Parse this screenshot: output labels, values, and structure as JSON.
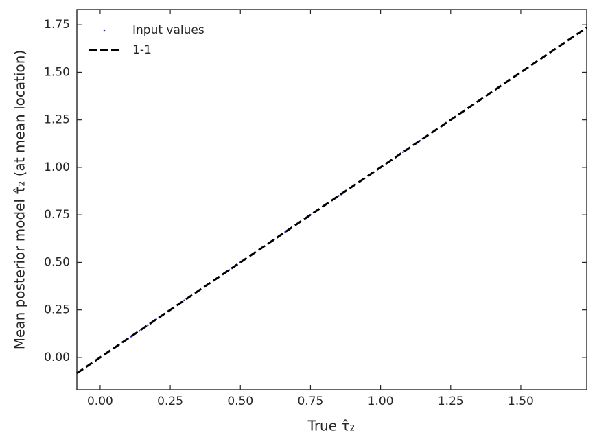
{
  "chart_data": {
    "type": "scatter",
    "xlabel": "True τ̂₂",
    "ylabel": "Mean posterior model τ̂₂ (at mean location)",
    "xlim": [
      -0.083,
      1.735
    ],
    "ylim": [
      -0.17,
      1.83
    ],
    "xticks": [
      {
        "value": 0,
        "label": "0.00"
      },
      {
        "value": 0.25,
        "label": "0.25"
      },
      {
        "value": 0.5,
        "label": "0.50"
      },
      {
        "value": 0.75,
        "label": "0.75"
      },
      {
        "value": 1,
        "label": "1.00"
      },
      {
        "value": 1.25,
        "label": "1.25"
      },
      {
        "value": 1.5,
        "label": "1.50"
      }
    ],
    "yticks": [
      {
        "value": 0,
        "label": "0.00"
      },
      {
        "value": 0.25,
        "label": "0.25"
      },
      {
        "value": 0.5,
        "label": "0.50"
      },
      {
        "value": 0.75,
        "label": "0.75"
      },
      {
        "value": 1,
        "label": "1.00"
      },
      {
        "value": 1.25,
        "label": "1.25"
      },
      {
        "value": 1.5,
        "label": "1.50"
      },
      {
        "value": 1.75,
        "label": "1.75"
      }
    ],
    "legend": "upper left",
    "series": [
      {
        "name": "Input values",
        "color": "#1f1fff",
        "mode": "markers",
        "x": [
          0.02,
          0.05,
          0.08,
          0.11,
          0.14,
          0.17,
          0.2,
          0.23,
          0.26,
          0.3,
          0.34,
          0.38,
          0.42,
          0.46,
          0.5,
          0.54,
          0.58,
          0.62,
          0.66,
          0.7,
          0.75,
          0.8,
          0.85,
          0.9,
          0.96,
          1.02,
          1.08,
          1.14,
          1.2,
          1.26,
          1.32,
          1.38
        ],
        "values": [
          0.02,
          0.05,
          0.08,
          0.11,
          0.14,
          0.17,
          0.2,
          0.23,
          0.26,
          0.3,
          0.34,
          0.38,
          0.42,
          0.46,
          0.5,
          0.54,
          0.58,
          0.62,
          0.66,
          0.7,
          0.75,
          0.8,
          0.85,
          0.9,
          0.96,
          1.02,
          1.08,
          1.14,
          1.2,
          1.26,
          1.32,
          1.38
        ]
      },
      {
        "name": "1-1",
        "color": "#000000",
        "mode": "line",
        "dashed": true,
        "x": [
          -0.083,
          1.735
        ],
        "values": [
          -0.083,
          1.735
        ]
      }
    ]
  }
}
